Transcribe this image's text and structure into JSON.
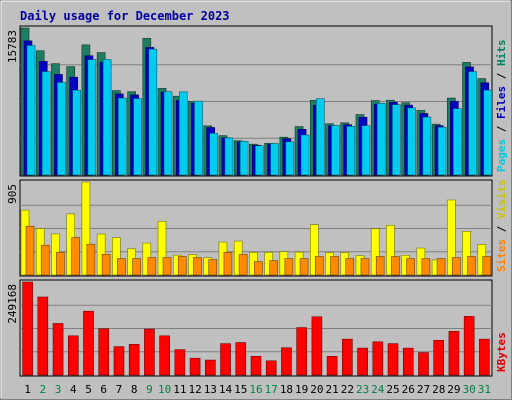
{
  "chart_data": {
    "type": "bar",
    "title": "Daily usage for December 2023",
    "categories": [
      "1",
      "2",
      "3",
      "4",
      "5",
      "6",
      "7",
      "8",
      "9",
      "10",
      "11",
      "12",
      "13",
      "14",
      "15",
      "16",
      "17",
      "18",
      "19",
      "20",
      "21",
      "22",
      "23",
      "24",
      "25",
      "26",
      "27",
      "28",
      "29",
      "30",
      "31"
    ],
    "weekend_days": [
      "2",
      "3",
      "9",
      "10",
      "16",
      "17",
      "23",
      "24",
      "30",
      "31"
    ],
    "panels": [
      {
        "id": "hits-files-pages",
        "ymax": 15783,
        "ymax_label": "15783",
        "axis_label_parts": [
          {
            "text": "Pages",
            "color": "#00c8e0"
          },
          {
            "text": " / ",
            "color": "#000000"
          },
          {
            "text": "Files",
            "color": "#0000c0"
          },
          {
            "text": " / ",
            "color": "#000000"
          },
          {
            "text": "Hits",
            "color": "#008060"
          }
        ],
        "series": [
          {
            "name": "Hits",
            "color": "#1e7d62",
            "values": [
              15783,
              13340,
              11950,
              11640,
              13970,
              13140,
              9060,
              8940,
              14670,
              9300,
              8460,
              7890,
              5280,
              4220,
              3680,
              3310,
              3400,
              4060,
              5200,
              8020,
              5500,
              5600,
              6490,
              7990,
              8030,
              7760,
              6930,
              5460,
              8260,
              12090,
              10350
            ]
          },
          {
            "name": "Files",
            "color": "#0000c0",
            "values": [
              14400,
              12200,
              10800,
              10500,
              12800,
              12100,
              8700,
              8600,
              13700,
              8900,
              8000,
              7700,
              5100,
              4000,
              3550,
              3200,
              3300,
              3900,
              4900,
              7500,
              5300,
              5400,
              6200,
              7600,
              7800,
              7500,
              6600,
              5300,
              7900,
              11600,
              9900
            ]
          },
          {
            "name": "Pages",
            "color": "#00ccf0",
            "values": [
              13900,
              11100,
              9940,
              9100,
              12390,
              12400,
              8260,
              8200,
              13510,
              8940,
              8930,
              7930,
              4470,
              3980,
              3620,
              3140,
              3380,
              3570,
              4300,
              8190,
              5320,
              5220,
              5290,
              7690,
              7550,
              7200,
              6220,
              5130,
              7120,
              11100,
              9110
            ]
          }
        ]
      },
      {
        "id": "visits-sites",
        "ymax": 905,
        "ymax_label": "905",
        "axis_label_parts": [
          {
            "text": "Sites",
            "color": "#ff8000"
          },
          {
            "text": " / ",
            "color": "#000000"
          },
          {
            "text": "Visits",
            "color": "#c8c000"
          }
        ],
        "series": [
          {
            "name": "Visits",
            "color": "#ffff00",
            "values": [
              631,
              452,
              400,
              595,
              905,
              399,
              364,
              255,
              311,
              523,
              193,
              199,
              169,
              320,
              330,
              220,
              220,
              227,
              222,
              490,
              218,
              218,
              189,
              450,
              484,
              192,
              262,
              147,
              730,
              425,
              298
            ]
          },
          {
            "name": "Sites",
            "color": "#ff8a00",
            "values": [
              475,
              290,
              220,
              365,
              300,
              201,
              160,
              160,
              170,
              170,
              180,
              170,
              150,
              220,
              200,
              130,
              140,
              160,
              160,
              180,
              180,
              160,
              160,
              180,
              180,
              160,
              160,
              160,
              170,
              180,
              180
            ]
          }
        ]
      },
      {
        "id": "kbytes",
        "ymax": 249168,
        "ymax_label": "249168",
        "axis_label_parts": [
          {
            "text": "KBytes",
            "color": "#e00000"
          }
        ],
        "series": [
          {
            "name": "KBytes",
            "color": "#ff0000",
            "values": [
              249168,
              209000,
              138000,
              105000,
              171000,
              124000,
              76000,
              82000,
              123000,
              105000,
              68000,
              45000,
              40000,
              84000,
              87000,
              50000,
              38000,
              73000,
              127000,
              156000,
              50000,
              96000,
              72000,
              89000,
              84000,
              72000,
              60000,
              93000,
              117000,
              157000,
              96000
            ]
          }
        ]
      }
    ]
  }
}
